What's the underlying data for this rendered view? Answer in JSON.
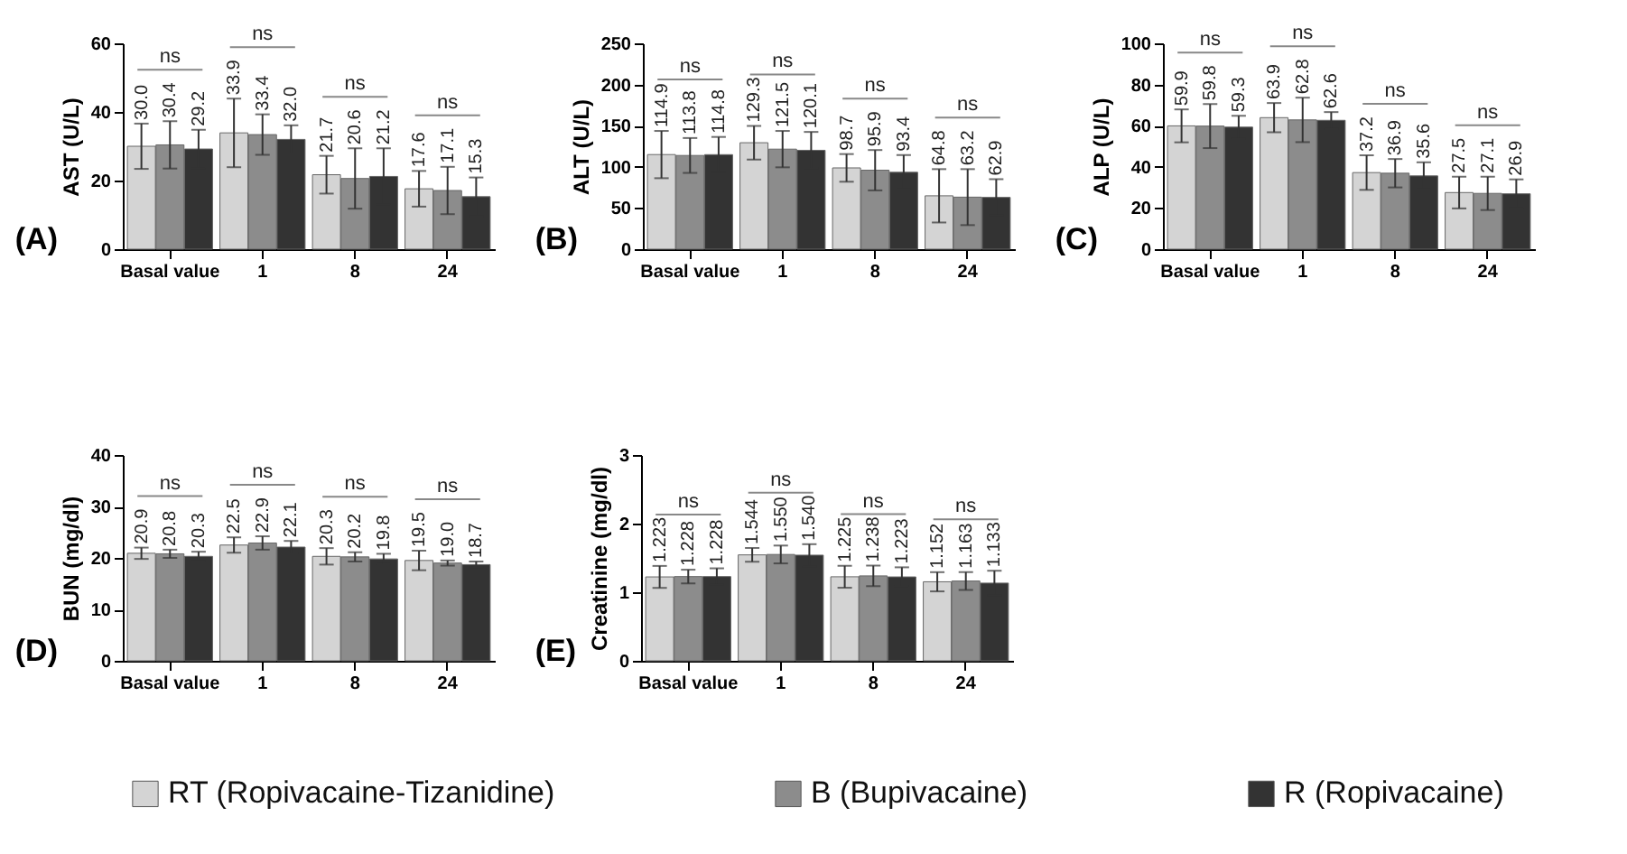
{
  "chart_data": [
    {
      "type": "bar",
      "ylabel": "AST (U/L)",
      "categories": [
        "Basal value",
        "1",
        "8",
        "24"
      ],
      "ylim": [
        0,
        60
      ],
      "yticks": [
        0,
        20,
        40,
        60
      ],
      "legend": "bottom",
      "series": [
        {
          "name": "RT (Ropivacaine-Tizanidine)",
          "color": "#d4d4d4",
          "values": [
            30.0,
            33.9,
            21.7,
            17.6
          ],
          "value_labels": [
            "30.0",
            "33.9",
            "21.7",
            "17.6"
          ],
          "errors": [
            6.6,
            10,
            5.5,
            5.2
          ]
        },
        {
          "name": "B (Bupivacaine)",
          "color": "#8c8c8c",
          "values": [
            30.4,
            33.4,
            20.6,
            17.1
          ],
          "value_labels": [
            "30.4",
            "33.4",
            "20.6",
            "17.1"
          ],
          "errors": [
            6.9,
            5.9,
            8.8,
            6.9
          ]
        },
        {
          "name": "R (Ropivacaine)",
          "color": "#333333",
          "values": [
            29.2,
            32.0,
            21.2,
            15.3
          ],
          "value_labels": [
            "29.2",
            "32.0",
            "21.2",
            "15.3"
          ],
          "errors": [
            5.6,
            4.1,
            8.2,
            5.6
          ]
        }
      ],
      "annotations": [
        "(A)",
        "ns",
        "ns",
        "ns",
        "ns"
      ]
    },
    {
      "type": "bar",
      "ylabel": "ALT (U/L)",
      "categories": [
        "Basal value",
        "1",
        "8",
        "24"
      ],
      "ylim": [
        0,
        250
      ],
      "yticks": [
        0,
        50,
        100,
        150,
        200,
        250
      ],
      "legend": "bottom",
      "series": [
        {
          "name": "RT (Ropivacaine-Tizanidine)",
          "color": "#d4d4d4",
          "values": [
            114.9,
            129.3,
            98.7,
            64.8
          ],
          "value_labels": [
            "114.9",
            "129.3",
            "98.7",
            "64.8"
          ],
          "errors": [
            28.7,
            20.5,
            16.8,
            32.4
          ]
        },
        {
          "name": "B (Bupivacaine)",
          "color": "#8c8c8c",
          "values": [
            113.8,
            121.5,
            95.9,
            63.2
          ],
          "value_labels": [
            "113.8",
            "121.5",
            "95.9",
            "63.2"
          ],
          "errors": [
            21.2,
            22.1,
            24.5,
            34
          ]
        },
        {
          "name": "R (Ropivacaine)",
          "color": "#333333",
          "values": [
            114.8,
            120.1,
            93.4,
            62.9
          ],
          "value_labels": [
            "114.8",
            "120.1",
            "93.4",
            "62.9"
          ],
          "errors": [
            21.5,
            22.3,
            20.9,
            22.1
          ]
        }
      ],
      "annotations": [
        "(B)",
        "ns",
        "ns",
        "ns",
        "ns"
      ]
    },
    {
      "type": "bar",
      "ylabel": "ALP (U/L)",
      "categories": [
        "Basal value",
        "1",
        "8",
        "24"
      ],
      "ylim": [
        0,
        100
      ],
      "yticks": [
        0,
        20,
        40,
        60,
        80,
        100
      ],
      "legend": "bottom",
      "series": [
        {
          "name": "RT (Ropivacaine-Tizanidine)",
          "color": "#d4d4d4",
          "values": [
            59.9,
            63.9,
            37.2,
            27.5
          ],
          "value_labels": [
            "59.9",
            "63.9",
            "37.2",
            "27.5"
          ],
          "errors": [
            8,
            7.1,
            8.4,
            7.7
          ]
        },
        {
          "name": "B (Bupivacaine)",
          "color": "#8c8c8c",
          "values": [
            59.8,
            62.8,
            36.9,
            27.1
          ],
          "value_labels": [
            "59.8",
            "62.8",
            "36.9",
            "27.1"
          ],
          "errors": [
            10.7,
            10.8,
            6.9,
            8.1
          ]
        },
        {
          "name": "R (Ropivacaine)",
          "color": "#333333",
          "values": [
            59.3,
            62.6,
            35.6,
            26.9
          ],
          "value_labels": [
            "59.3",
            "62.6",
            "35.6",
            "26.9"
          ],
          "errors": [
            5.5,
            4,
            6.6,
            7
          ]
        }
      ],
      "annotations": [
        "(C)",
        "ns",
        "ns",
        "ns",
        "ns"
      ]
    },
    {
      "type": "bar",
      "ylabel": "BUN (mg/dl)",
      "categories": [
        "Basal value",
        "1",
        "8",
        "24"
      ],
      "ylim": [
        0,
        40
      ],
      "yticks": [
        0,
        10,
        20,
        30,
        40
      ],
      "legend": "bottom",
      "series": [
        {
          "name": "RT (Ropivacaine-Tizanidine)",
          "color": "#d4d4d4",
          "values": [
            20.9,
            22.5,
            20.3,
            19.5
          ],
          "value_labels": [
            "20.9",
            "22.5",
            "20.3",
            "19.5"
          ],
          "errors": [
            1.1,
            1.5,
            1.6,
            1.9
          ]
        },
        {
          "name": "B (Bupivacaine)",
          "color": "#8c8c8c",
          "values": [
            20.8,
            22.9,
            20.2,
            19.0
          ],
          "value_labels": [
            "20.8",
            "22.9",
            "20.2",
            "19.0"
          ],
          "errors": [
            0.8,
            1.3,
            0.9,
            0.5
          ]
        },
        {
          "name": "R (Ropivacaine)",
          "color": "#333333",
          "values": [
            20.3,
            22.1,
            19.8,
            18.7
          ],
          "value_labels": [
            "20.3",
            "22.1",
            "19.8",
            "18.7"
          ],
          "errors": [
            0.9,
            1.2,
            1.0,
            0.6
          ]
        }
      ],
      "annotations": [
        "(D)",
        "ns",
        "ns",
        "ns",
        "ns"
      ]
    },
    {
      "type": "bar",
      "ylabel": "Creatinine (mg/dl)",
      "categories": [
        "Basal value",
        "1",
        "8",
        "24"
      ],
      "ylim": [
        0,
        3
      ],
      "yticks": [
        0,
        1,
        2,
        3
      ],
      "legend": "bottom",
      "series": [
        {
          "name": "RT (Ropivacaine-Tizanidine)",
          "color": "#d4d4d4",
          "values": [
            1.223,
            1.544,
            1.225,
            1.152
          ],
          "value_labels": [
            "1.223",
            "1.544",
            "1.225",
            "1.152"
          ],
          "errors": [
            0.16,
            0.1,
            0.16,
            0.14
          ]
        },
        {
          "name": "B (Bupivacaine)",
          "color": "#8c8c8c",
          "values": [
            1.228,
            1.55,
            1.238,
            1.163
          ],
          "value_labels": [
            "1.228",
            "1.550",
            "1.238",
            "1.163"
          ],
          "errors": [
            0.1,
            0.13,
            0.15,
            0.13
          ]
        },
        {
          "name": "R (Ropivacaine)",
          "color": "#333333",
          "values": [
            1.228,
            1.54,
            1.223,
            1.133
          ],
          "value_labels": [
            "1.228",
            "1.540",
            "1.223",
            "1.133"
          ],
          "errors": [
            0.12,
            0.16,
            0.14,
            0.18
          ]
        }
      ],
      "annotations": [
        "(E)",
        "ns",
        "ns",
        "ns",
        "ns"
      ]
    }
  ]
}
